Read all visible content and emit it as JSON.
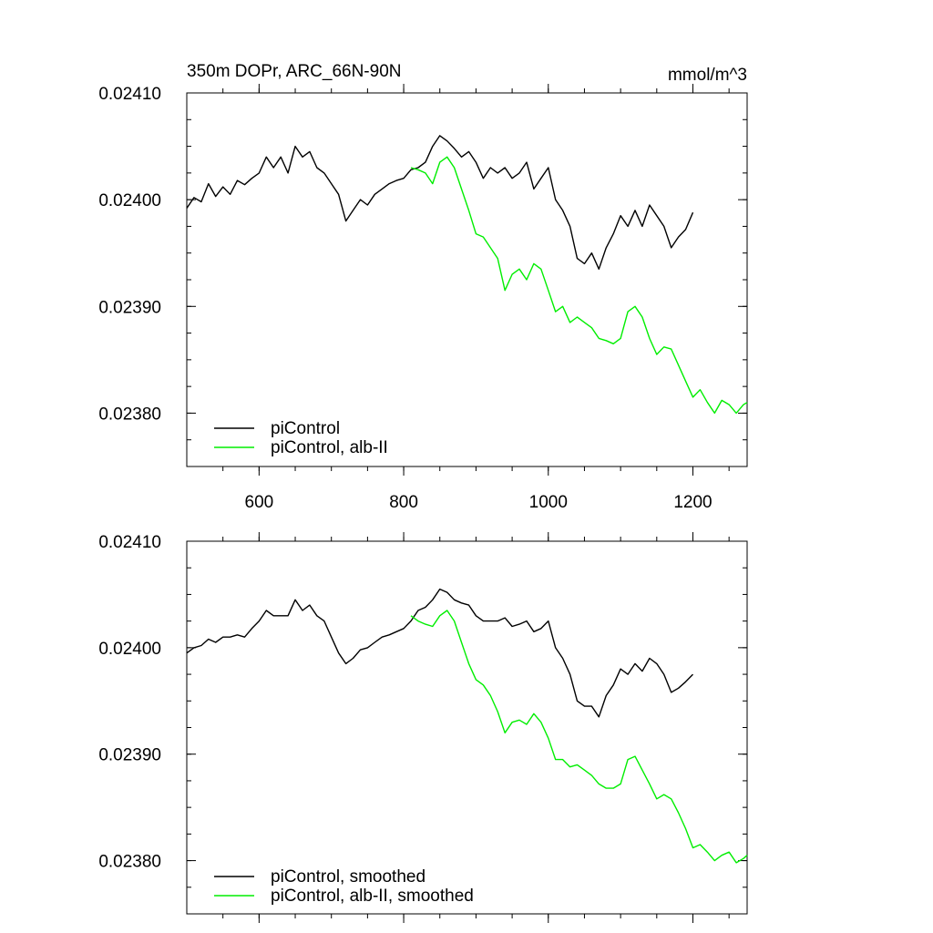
{
  "colors": {
    "control": "#000000",
    "experiment": "#00ee00",
    "frame": "#000000",
    "background": "#ffffff"
  },
  "chart_data": [
    {
      "type": "line",
      "title": "350m DOPr, ARC_66N-90N",
      "units": "mmol/m^3",
      "xlabel": "",
      "ylabel": "",
      "xlim": [
        500,
        1275
      ],
      "ylim": [
        0.02375,
        0.0241
      ],
      "x_ticks": [
        600,
        800,
        1000,
        1200
      ],
      "x_tick_labels": [
        "600",
        "800",
        "1000",
        "1200"
      ],
      "y_ticks": [
        0.0238,
        0.0239,
        0.024,
        0.0241
      ],
      "y_tick_labels": [
        "0.02380",
        "0.02390",
        "0.02400",
        "0.02410"
      ],
      "grid": false,
      "legend_position": "bottom-left",
      "series": [
        {
          "name": "piControl",
          "color_key": "control",
          "x": [
            500,
            510,
            520,
            530,
            540,
            550,
            560,
            570,
            580,
            590,
            600,
            610,
            620,
            630,
            640,
            650,
            660,
            670,
            680,
            690,
            700,
            710,
            720,
            730,
            740,
            750,
            760,
            770,
            780,
            790,
            800,
            810,
            820,
            830,
            840,
            850,
            860,
            870,
            880,
            890,
            900,
            910,
            920,
            930,
            940,
            950,
            960,
            970,
            980,
            990,
            1000,
            1010,
            1020,
            1030,
            1040,
            1050,
            1060,
            1070,
            1080,
            1090,
            1100,
            1110,
            1120,
            1130,
            1140,
            1150,
            1160,
            1170,
            1180,
            1190,
            1200
          ],
          "values": [
            0.023992,
            0.024002,
            0.023998,
            0.024015,
            0.024003,
            0.024012,
            0.024005,
            0.024018,
            0.024014,
            0.02402,
            0.024025,
            0.02404,
            0.02403,
            0.02404,
            0.024025,
            0.02405,
            0.02404,
            0.024045,
            0.02403,
            0.024025,
            0.024015,
            0.024005,
            0.02398,
            0.02399,
            0.024,
            0.023995,
            0.024005,
            0.02401,
            0.024015,
            0.024018,
            0.02402,
            0.024028,
            0.02403,
            0.024035,
            0.02405,
            0.02406,
            0.024055,
            0.024048,
            0.02404,
            0.024045,
            0.024035,
            0.02402,
            0.02403,
            0.024025,
            0.02403,
            0.02402,
            0.024025,
            0.024035,
            0.02401,
            0.02402,
            0.02403,
            0.024,
            0.02399,
            0.023975,
            0.023945,
            0.02394,
            0.02395,
            0.023935,
            0.023955,
            0.023968,
            0.023985,
            0.023975,
            0.02399,
            0.023975,
            0.023995,
            0.023985,
            0.023975,
            0.023955,
            0.023965,
            0.023972,
            0.023988
          ]
        },
        {
          "name": "piControl, alb-II",
          "color_key": "experiment",
          "x": [
            810,
            820,
            830,
            840,
            850,
            860,
            870,
            880,
            890,
            900,
            910,
            920,
            930,
            940,
            950,
            960,
            970,
            980,
            990,
            1000,
            1010,
            1020,
            1030,
            1040,
            1050,
            1060,
            1070,
            1080,
            1090,
            1100,
            1110,
            1120,
            1130,
            1140,
            1150,
            1160,
            1170,
            1180,
            1190,
            1200,
            1210,
            1220,
            1230,
            1240,
            1250,
            1260,
            1270,
            1275
          ],
          "values": [
            0.02403,
            0.024028,
            0.024025,
            0.024015,
            0.024035,
            0.02404,
            0.02403,
            0.02401,
            0.02399,
            0.023968,
            0.023965,
            0.023955,
            0.023945,
            0.023915,
            0.02393,
            0.023935,
            0.023925,
            0.02394,
            0.023935,
            0.023915,
            0.023895,
            0.0239,
            0.023885,
            0.02389,
            0.023885,
            0.02388,
            0.02387,
            0.023868,
            0.023865,
            0.02387,
            0.023895,
            0.0239,
            0.02389,
            0.02387,
            0.023855,
            0.023862,
            0.02386,
            0.023845,
            0.02383,
            0.023815,
            0.023822,
            0.02381,
            0.0238,
            0.023812,
            0.023808,
            0.0238,
            0.023808,
            0.02381
          ]
        }
      ]
    },
    {
      "type": "line",
      "title": "",
      "units": "",
      "xlabel": "",
      "ylabel": "",
      "xlim": [
        500,
        1275
      ],
      "ylim": [
        0.02375,
        0.0241
      ],
      "x_ticks": [
        600,
        800,
        1000,
        1200
      ],
      "x_tick_labels": [],
      "y_ticks": [
        0.0238,
        0.0239,
        0.024,
        0.0241
      ],
      "y_tick_labels": [
        "0.02380",
        "0.02390",
        "0.02400",
        "0.02410"
      ],
      "grid": false,
      "legend_position": "bottom-left",
      "series": [
        {
          "name": "piControl, smoothed",
          "color_key": "control",
          "x": [
            500,
            510,
            520,
            530,
            540,
            550,
            560,
            570,
            580,
            590,
            600,
            610,
            620,
            630,
            640,
            650,
            660,
            670,
            680,
            690,
            700,
            710,
            720,
            730,
            740,
            750,
            760,
            770,
            780,
            790,
            800,
            810,
            820,
            830,
            840,
            850,
            860,
            870,
            880,
            890,
            900,
            910,
            920,
            930,
            940,
            950,
            960,
            970,
            980,
            990,
            1000,
            1010,
            1020,
            1030,
            1040,
            1050,
            1060,
            1070,
            1080,
            1090,
            1100,
            1110,
            1120,
            1130,
            1140,
            1150,
            1160,
            1170,
            1180,
            1190,
            1200
          ],
          "values": [
            0.023995,
            0.024,
            0.024002,
            0.024008,
            0.024005,
            0.02401,
            0.02401,
            0.024012,
            0.02401,
            0.024018,
            0.024025,
            0.024035,
            0.02403,
            0.02403,
            0.02403,
            0.024045,
            0.024035,
            0.02404,
            0.02403,
            0.024025,
            0.02401,
            0.023995,
            0.023985,
            0.02399,
            0.023998,
            0.024,
            0.024005,
            0.02401,
            0.024012,
            0.024015,
            0.024018,
            0.024025,
            0.024035,
            0.024038,
            0.024045,
            0.024055,
            0.024052,
            0.024045,
            0.024042,
            0.02404,
            0.02403,
            0.024025,
            0.024025,
            0.024025,
            0.024028,
            0.02402,
            0.024022,
            0.024025,
            0.024015,
            0.024018,
            0.024025,
            0.024,
            0.02399,
            0.023975,
            0.02395,
            0.023945,
            0.023945,
            0.023935,
            0.023955,
            0.023965,
            0.02398,
            0.023975,
            0.023985,
            0.023978,
            0.02399,
            0.023985,
            0.023975,
            0.023958,
            0.023962,
            0.023968,
            0.023975
          ]
        },
        {
          "name": "piControl, alb-II, smoothed",
          "color_key": "experiment",
          "x": [
            810,
            820,
            830,
            840,
            850,
            860,
            870,
            880,
            890,
            900,
            910,
            920,
            930,
            940,
            950,
            960,
            970,
            980,
            990,
            1000,
            1010,
            1020,
            1030,
            1040,
            1050,
            1060,
            1070,
            1080,
            1090,
            1100,
            1110,
            1120,
            1130,
            1140,
            1150,
            1160,
            1170,
            1180,
            1190,
            1200,
            1210,
            1220,
            1230,
            1240,
            1250,
            1260,
            1270,
            1275
          ],
          "values": [
            0.02403,
            0.024025,
            0.024022,
            0.02402,
            0.02403,
            0.024035,
            0.024025,
            0.024005,
            0.023985,
            0.02397,
            0.023965,
            0.023955,
            0.02394,
            0.02392,
            0.02393,
            0.023932,
            0.023928,
            0.023938,
            0.02393,
            0.023915,
            0.023895,
            0.023895,
            0.023888,
            0.02389,
            0.023885,
            0.02388,
            0.023872,
            0.023868,
            0.023868,
            0.023872,
            0.023895,
            0.023898,
            0.023885,
            0.023872,
            0.023858,
            0.023862,
            0.023858,
            0.023845,
            0.02383,
            0.023812,
            0.023815,
            0.023808,
            0.0238,
            0.023805,
            0.023808,
            0.023798,
            0.023802,
            0.023805
          ]
        }
      ]
    }
  ]
}
